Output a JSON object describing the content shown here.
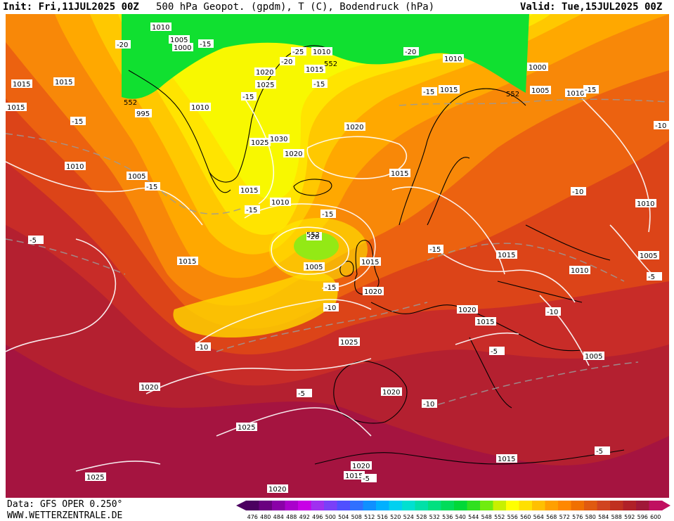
{
  "header": {
    "init": "Init: Fri,11JUL2025 00Z",
    "title": "500 hPa Geopot. (gpdm), T (C), Bodendruck (hPa)",
    "valid": "Valid: Tue,15JUL2025 00Z"
  },
  "footer": {
    "source": "Data: GFS OPER 0.250°",
    "site": "WWW.WETTERZENTRALE.DE"
  },
  "legend": {
    "values": [
      "476",
      "480",
      "484",
      "488",
      "492",
      "496",
      "500",
      "504",
      "508",
      "512",
      "516",
      "520",
      "524",
      "528",
      "532",
      "536",
      "540",
      "544",
      "548",
      "552",
      "556",
      "560",
      "564",
      "568",
      "572",
      "576",
      "580",
      "584",
      "588",
      "592",
      "596",
      "600"
    ],
    "colors": [
      "#4b0060",
      "#6a0080",
      "#8a00a8",
      "#aa00cc",
      "#c800e6",
      "#a030f0",
      "#7a40f8",
      "#5050ff",
      "#3070ff",
      "#1090ff",
      "#00b0ff",
      "#00d0f0",
      "#00e0d0",
      "#00e0a8",
      "#00e080",
      "#00dc5a",
      "#00d838",
      "#30e020",
      "#70ec10",
      "#c8f000",
      "#ffff00",
      "#ffe000",
      "#ffc000",
      "#ffa000",
      "#ff8800",
      "#f07000",
      "#e05a10",
      "#d04420",
      "#c03020",
      "#b02028",
      "#a01838",
      "#c01060"
    ]
  },
  "pressure_labels": [
    {
      "text": "1010"
    },
    {
      "text": "1005"
    },
    {
      "text": "1000"
    },
    {
      "text": "995"
    },
    {
      "text": "1010"
    },
    {
      "text": "1015"
    },
    {
      "text": "1015"
    },
    {
      "text": "1015"
    },
    {
      "text": "1010"
    },
    {
      "text": "1005"
    },
    {
      "text": "1020"
    },
    {
      "text": "1025"
    },
    {
      "text": "1030"
    },
    {
      "text": "1025"
    },
    {
      "text": "1020"
    },
    {
      "text": "1020"
    },
    {
      "text": "1015"
    },
    {
      "text": "1010"
    },
    {
      "text": "1015"
    },
    {
      "text": "1010"
    },
    {
      "text": "1000"
    },
    {
      "text": "1005"
    },
    {
      "text": "1010"
    },
    {
      "text": "1015"
    },
    {
      "text": "1015"
    },
    {
      "text": "1005"
    },
    {
      "text": "1015"
    },
    {
      "text": "1020"
    },
    {
      "text": "1010"
    },
    {
      "text": "1015"
    },
    {
      "text": "1025"
    },
    {
      "text": "1020"
    },
    {
      "text": "1020"
    },
    {
      "text": "1015"
    },
    {
      "text": "1015"
    },
    {
      "text": "1010"
    },
    {
      "text": "1005"
    },
    {
      "text": "1010"
    },
    {
      "text": "1020"
    },
    {
      "text": "1025"
    },
    {
      "text": "1025"
    },
    {
      "text": "1020"
    },
    {
      "text": "1015"
    },
    {
      "text": "1020"
    },
    {
      "text": "1015"
    },
    {
      "text": "1005"
    }
  ],
  "temp_labels": [
    {
      "text": "-20"
    },
    {
      "text": "-15"
    },
    {
      "text": "-25"
    },
    {
      "text": "-20"
    },
    {
      "text": "-15"
    },
    {
      "text": "-15"
    },
    {
      "text": "-15"
    },
    {
      "text": "-20"
    },
    {
      "text": "-15"
    },
    {
      "text": "-15"
    },
    {
      "text": "-15"
    },
    {
      "text": "-15"
    },
    {
      "text": "-15"
    },
    {
      "text": "-20"
    },
    {
      "text": "-15"
    },
    {
      "text": "-10"
    },
    {
      "text": "-10"
    },
    {
      "text": "-10"
    },
    {
      "text": "-5"
    },
    {
      "text": "-10"
    },
    {
      "text": "-5"
    },
    {
      "text": "-10"
    },
    {
      "text": "-5"
    },
    {
      "text": "-5"
    },
    {
      "text": "-5"
    },
    {
      "text": "-5"
    },
    {
      "text": "-15"
    },
    {
      "text": "-10"
    }
  ],
  "geopot_labels": [
    {
      "text": "552"
    },
    {
      "text": "552"
    },
    {
      "text": "552"
    },
    {
      "text": "552"
    }
  ]
}
